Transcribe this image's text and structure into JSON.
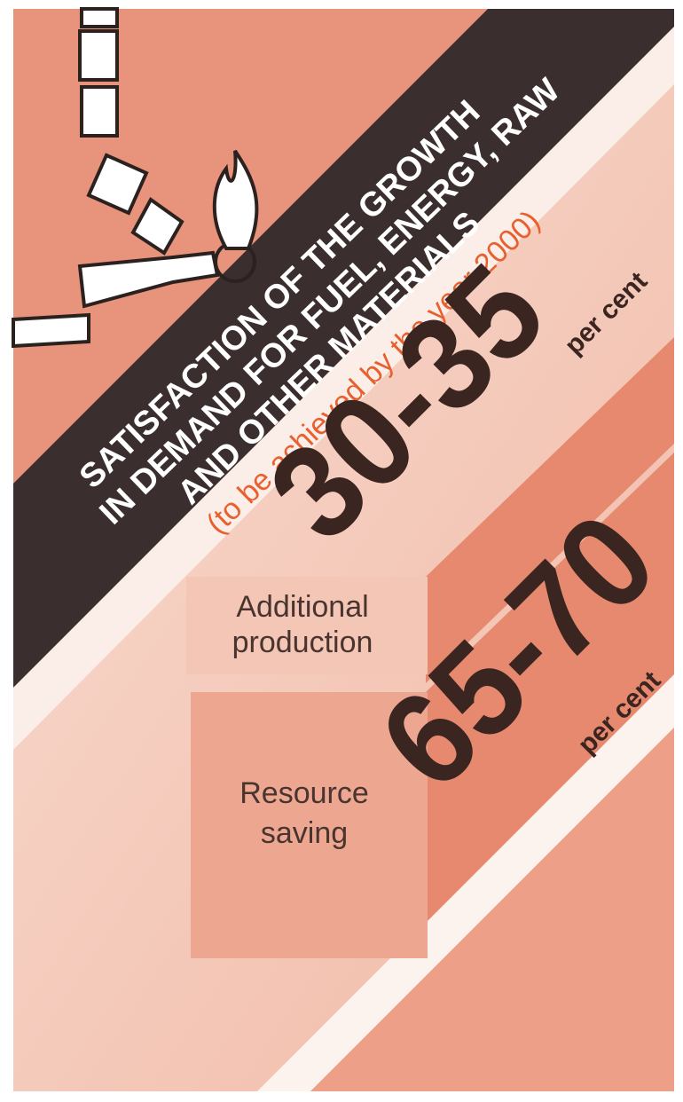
{
  "title_lines": [
    "SATISFACTION OF THE GROWTH",
    "IN DEMAND FOR FUEL, ENERGY, RAW",
    "AND OTHER MATERIALS"
  ],
  "subtitle": "(to be achieved by the year 2000)",
  "items": [
    {
      "value": "30-35",
      "unit": "per cent",
      "label_lines": [
        "Additional",
        "production"
      ]
    },
    {
      "value": "65-70",
      "unit": "per cent",
      "label_lines": [
        "Resource",
        "saving"
      ]
    }
  ]
}
